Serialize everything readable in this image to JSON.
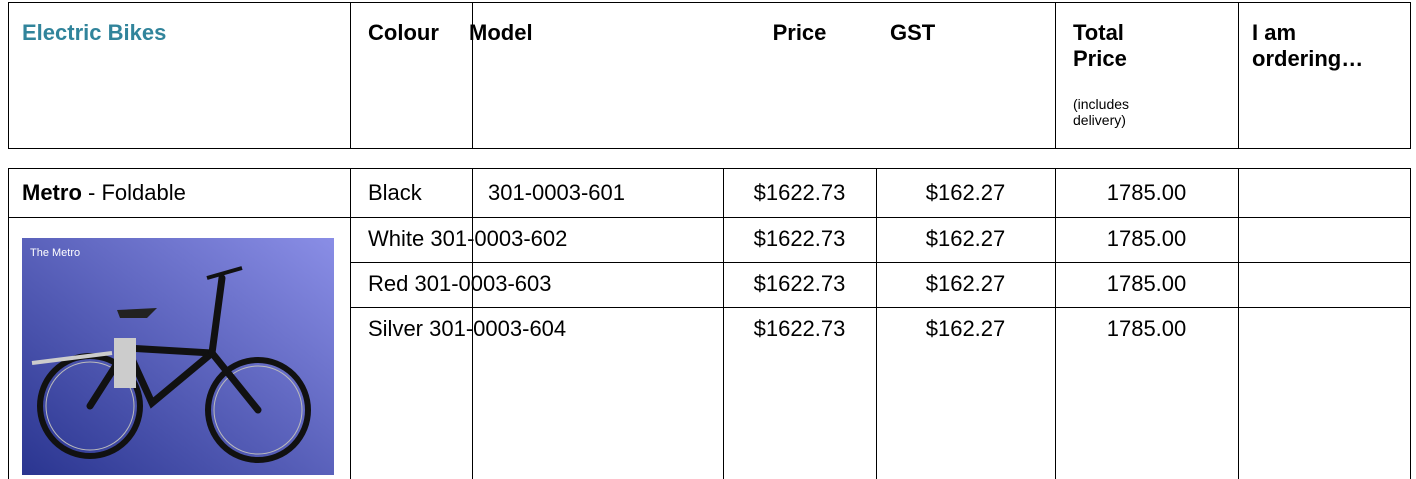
{
  "header": {
    "title": "Electric Bikes",
    "columns": [
      "Colour",
      "Model",
      "Price",
      "GST",
      "Total Price",
      "I am ordering…"
    ],
    "total_note": "(includes delivery)"
  },
  "table": {
    "product": {
      "name": "Metro",
      "suffix": "- Foldable",
      "image_caption": "The Metro"
    },
    "rows": [
      [
        "Black",
        "301-0003-601",
        "$1622.73",
        "$162.27",
        "1785.00"
      ],
      [
        "White",
        "301-0003-602",
        "$1622.73",
        "$162.27",
        "1785.00"
      ],
      [
        "Red",
        "301-0003-603",
        "$1622.73",
        "$162.27",
        "1785.00"
      ],
      [
        "Silver",
        "301-0003-604",
        "$1622.73",
        "$162.27",
        "1785.00"
      ]
    ]
  }
}
